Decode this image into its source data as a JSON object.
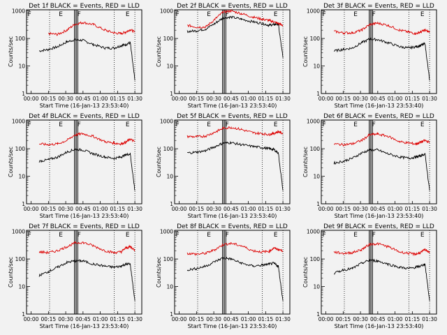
{
  "colors": {
    "background": "#f2f2f2",
    "events": "#000000",
    "lld": "#dd0000",
    "axes": "#000000"
  },
  "axes_common": {
    "xlabel": "Start Time (16-Jan-13 23:53:40)",
    "ylabel": "Counts/sec",
    "xtick_labels": [
      "00:00",
      "00:15",
      "00:30",
      "00:45",
      "01:00",
      "01:15",
      "01:30"
    ],
    "ytick_labels": [
      "1",
      "10",
      "100",
      "1000"
    ],
    "yscale": "log",
    "xlim_minutes": [
      -4,
      96
    ],
    "ylim": [
      1,
      1100
    ]
  },
  "markers": {
    "labels": [
      "F",
      "E",
      "F",
      "E"
    ]
  },
  "chart_data": [
    {
      "type": "line",
      "title": "Det 1f BLACK = Events, RED = LLD",
      "x_minutes": [
        7,
        15,
        23,
        31,
        38,
        45,
        54,
        64,
        72,
        78,
        82,
        86,
        90
      ],
      "series": [
        {
          "name": "BLACK = Events",
          "values": [
            35,
            40,
            50,
            75,
            90,
            85,
            60,
            45,
            45,
            55,
            60,
            70,
            3
          ]
        },
        {
          "name": "RED = LLD",
          "values": [
            null,
            150,
            140,
            200,
            330,
            380,
            320,
            200,
            160,
            150,
            170,
            210,
            170
          ]
        }
      ]
    },
    {
      "type": "line",
      "title": "Det 2f BLACK = Events, RED = LLD",
      "x_minutes": [
        7,
        15,
        23,
        31,
        38,
        45,
        54,
        64,
        72,
        78,
        82,
        86,
        90
      ],
      "series": [
        {
          "name": "BLACK = Events",
          "values": [
            180,
            190,
            220,
            350,
            560,
            600,
            500,
            400,
            350,
            300,
            320,
            330,
            20
          ]
        },
        {
          "name": "RED = LLD",
          "values": [
            300,
            260,
            260,
            500,
            900,
            1000,
            800,
            600,
            500,
            450,
            400,
            350,
            300
          ]
        }
      ]
    },
    {
      "type": "line",
      "title": "Det 3f BLACK = Events, RED = LLD",
      "x_minutes": [
        7,
        15,
        23,
        31,
        38,
        45,
        54,
        64,
        72,
        78,
        82,
        86,
        90
      ],
      "series": [
        {
          "name": "BLACK = Events",
          "values": [
            35,
            40,
            45,
            70,
            95,
            90,
            70,
            50,
            45,
            50,
            55,
            65,
            3
          ]
        },
        {
          "name": "RED = LLD",
          "values": [
            180,
            160,
            160,
            200,
            320,
            360,
            300,
            200,
            170,
            150,
            170,
            200,
            170
          ]
        }
      ]
    },
    {
      "type": "line",
      "title": "Det 4f BLACK = Events, RED = LLD",
      "x_minutes": [
        7,
        15,
        23,
        31,
        38,
        45,
        54,
        64,
        72,
        78,
        82,
        86,
        90
      ],
      "series": [
        {
          "name": "BLACK = Events",
          "values": [
            35,
            40,
            50,
            75,
            95,
            90,
            65,
            50,
            45,
            50,
            60,
            65,
            3
          ]
        },
        {
          "name": "RED = LLD",
          "values": [
            150,
            140,
            150,
            200,
            320,
            350,
            280,
            180,
            160,
            150,
            170,
            220,
            180
          ]
        }
      ]
    },
    {
      "type": "line",
      "title": "Det 5f BLACK = Events, RED = LLD",
      "x_minutes": [
        7,
        15,
        23,
        31,
        38,
        45,
        54,
        64,
        72,
        78,
        82,
        86,
        90
      ],
      "series": [
        {
          "name": "BLACK = Events",
          "values": [
            70,
            75,
            85,
            120,
            160,
            165,
            140,
            120,
            110,
            100,
            95,
            70,
            3
          ]
        },
        {
          "name": "RED = LLD",
          "values": [
            280,
            270,
            290,
            400,
            550,
            600,
            500,
            380,
            350,
            330,
            360,
            420,
            350
          ]
        }
      ]
    },
    {
      "type": "line",
      "title": "Det 6f BLACK = Events, RED = LLD",
      "x_minutes": [
        7,
        15,
        23,
        31,
        38,
        45,
        54,
        64,
        72,
        78,
        82,
        86,
        90
      ],
      "series": [
        {
          "name": "BLACK = Events",
          "values": [
            30,
            35,
            45,
            70,
            90,
            90,
            65,
            50,
            45,
            50,
            55,
            65,
            3
          ]
        },
        {
          "name": "RED = LLD",
          "values": [
            150,
            140,
            150,
            200,
            320,
            340,
            280,
            180,
            160,
            150,
            170,
            200,
            170
          ]
        }
      ]
    },
    {
      "type": "line",
      "title": "Det 7f BLACK = Events, RED = LLD",
      "x_minutes": [
        7,
        15,
        23,
        31,
        38,
        45,
        54,
        64,
        72,
        78,
        82,
        86,
        90
      ],
      "series": [
        {
          "name": "BLACK = Events",
          "values": [
            25,
            35,
            50,
            75,
            85,
            85,
            65,
            55,
            50,
            55,
            65,
            65,
            3
          ]
        },
        {
          "name": "RED = LLD",
          "values": [
            180,
            170,
            200,
            280,
            380,
            400,
            300,
            200,
            170,
            180,
            250,
            280,
            210
          ]
        }
      ]
    },
    {
      "type": "line",
      "title": "Det 8f BLACK = Events, RED = LLD",
      "x_minutes": [
        7,
        15,
        23,
        31,
        38,
        45,
        54,
        64,
        72,
        78,
        82,
        86,
        90
      ],
      "series": [
        {
          "name": "BLACK = Events",
          "values": [
            40,
            45,
            55,
            80,
            110,
            100,
            70,
            55,
            60,
            65,
            70,
            55,
            3
          ]
        },
        {
          "name": "RED = LLD",
          "values": [
            160,
            150,
            160,
            220,
            330,
            370,
            300,
            200,
            180,
            190,
            250,
            220,
            200
          ]
        }
      ]
    },
    {
      "type": "line",
      "title": "Det 9f BLACK = Events, RED = LLD",
      "x_minutes": [
        7,
        15,
        23,
        31,
        38,
        45,
        54,
        64,
        72,
        78,
        82,
        86,
        90
      ],
      "series": [
        {
          "name": "BLACK = Events",
          "values": [
            30,
            40,
            45,
            70,
            90,
            85,
            65,
            50,
            45,
            50,
            55,
            65,
            3
          ]
        },
        {
          "name": "RED = LLD",
          "values": [
            180,
            160,
            170,
            220,
            340,
            360,
            280,
            180,
            160,
            150,
            170,
            220,
            180
          ]
        }
      ]
    }
  ]
}
